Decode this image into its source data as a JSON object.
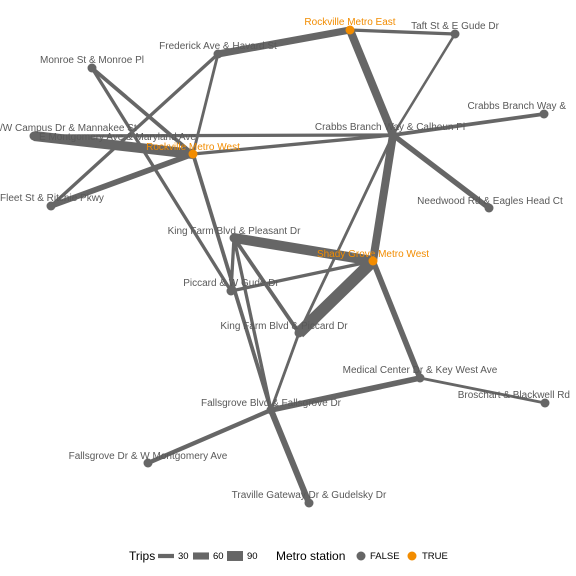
{
  "colors": {
    "edge": "#666666",
    "node_false": "#666666",
    "node_true": "#f28c00",
    "label": "#595959"
  },
  "chart_data": {
    "type": "network",
    "nodes": [
      {
        "id": "rockville_east",
        "label": "Rockville Metro East",
        "metro": true
      },
      {
        "id": "taft_gude",
        "label": "Taft St & E Gude Dr",
        "metro": false
      },
      {
        "id": "frederick_havard",
        "label": "Frederick Ave & Havard St",
        "metro": false
      },
      {
        "id": "monroe",
        "label": "Monroe St & Monroe Pl",
        "metro": false
      },
      {
        "id": "crabbs_way",
        "label": "Crabbs Branch Way &",
        "metro": false
      },
      {
        "id": "w_campus",
        "label": "/W Campus Dr & Mannakee St",
        "metro": false
      },
      {
        "id": "montgomery_maryland",
        "label": "E Montgomery Ave & Maryland Ave",
        "metro": false
      },
      {
        "id": "rockville_west",
        "label": "Rockville Metro West",
        "metro": true
      },
      {
        "id": "crabbs_calhoun",
        "label": "Crabbs Branch Way & Calhoun Pl",
        "metro": false
      },
      {
        "id": "ritchie",
        "label": "Fleet St & Ritchie Pkwy",
        "metro": false
      },
      {
        "id": "needwood",
        "label": "Needwood Rd & Eagles Head Ct",
        "metro": false
      },
      {
        "id": "kingfarm_pleasant",
        "label": "King Farm Blvd & Pleasant Dr",
        "metro": false
      },
      {
        "id": "shady_grove_west",
        "label": "Shady Grove Metro West",
        "metro": true
      },
      {
        "id": "piccard_gude",
        "label": "Piccard & W Gude Dr",
        "metro": false
      },
      {
        "id": "kingfarm_piccard",
        "label": "King Farm Blvd & Piccard Dr",
        "metro": false
      },
      {
        "id": "medical_center",
        "label": "Medical Center Dr & Key West Ave",
        "metro": false
      },
      {
        "id": "broschart",
        "label": "Broschart & Blackwell Rd",
        "metro": false
      },
      {
        "id": "fallsgrove",
        "label": "Fallsgrove Blvd & Fallsgrove Dr",
        "metro": false
      },
      {
        "id": "fallsgrove_w_montgomery",
        "label": "Fallsgrove Dr & W Montgomery Ave",
        "metro": false
      },
      {
        "id": "traville",
        "label": "Traville Gateway Dr & Gudelsky Dr",
        "metro": false
      }
    ],
    "edges": [
      {
        "source": "rockville_east",
        "target": "frederick_havard",
        "trips": 60
      },
      {
        "source": "rockville_east",
        "target": "taft_gude",
        "trips": 20
      },
      {
        "source": "rockville_east",
        "target": "crabbs_calhoun",
        "trips": 70
      },
      {
        "source": "taft_gude",
        "target": "crabbs_calhoun",
        "trips": 12
      },
      {
        "source": "frederick_havard",
        "target": "ritchie",
        "trips": 20
      },
      {
        "source": "frederick_havard",
        "target": "rockville_west",
        "trips": 15
      },
      {
        "source": "monroe",
        "target": "rockville_west",
        "trips": 25
      },
      {
        "source": "monroe",
        "target": "piccard_gude",
        "trips": 20
      },
      {
        "source": "w_campus",
        "target": "rockville_west",
        "trips": 90
      },
      {
        "source": "w_campus",
        "target": "crabbs_calhoun",
        "trips": 20
      },
      {
        "source": "ritchie",
        "target": "rockville_west",
        "trips": 45
      },
      {
        "source": "rockville_west",
        "target": "crabbs_calhoun",
        "trips": 20
      },
      {
        "source": "rockville_west",
        "target": "fallsgrove",
        "trips": 25
      },
      {
        "source": "crabbs_calhoun",
        "target": "crabbs_way",
        "trips": 25
      },
      {
        "source": "crabbs_calhoun",
        "target": "needwood",
        "trips": 40
      },
      {
        "source": "crabbs_calhoun",
        "target": "shady_grove_west",
        "trips": 70
      },
      {
        "source": "crabbs_calhoun",
        "target": "kingfarm_piccard",
        "trips": 15
      },
      {
        "source": "kingfarm_pleasant",
        "target": "shady_grove_west",
        "trips": 90
      },
      {
        "source": "kingfarm_pleasant",
        "target": "piccard_gude",
        "trips": 20
      },
      {
        "source": "kingfarm_pleasant",
        "target": "kingfarm_piccard",
        "trips": 25
      },
      {
        "source": "kingfarm_pleasant",
        "target": "fallsgrove",
        "trips": 20
      },
      {
        "source": "piccard_gude",
        "target": "shady_grove_west",
        "trips": 20
      },
      {
        "source": "kingfarm_piccard",
        "target": "shady_grove_west",
        "trips": 110
      },
      {
        "source": "kingfarm_piccard",
        "target": "fallsgrove",
        "trips": 15
      },
      {
        "source": "shady_grove_west",
        "target": "medical_center",
        "trips": 45
      },
      {
        "source": "medical_center",
        "target": "broschart",
        "trips": 15
      },
      {
        "source": "medical_center",
        "target": "fallsgrove",
        "trips": 45
      },
      {
        "source": "fallsgrove",
        "target": "fallsgrove_w_montgomery",
        "trips": 30
      },
      {
        "source": "fallsgrove",
        "target": "traville",
        "trips": 50
      }
    ]
  },
  "legend": {
    "trips_title": "Trips",
    "trips_items": [
      {
        "label": "30",
        "trips": 30
      },
      {
        "label": "60",
        "trips": 60
      },
      {
        "label": "90",
        "trips": 90
      }
    ],
    "metro_title": "Metro station",
    "metro_items": [
      {
        "label": "FALSE",
        "metro": false
      },
      {
        "label": "TRUE",
        "metro": true
      }
    ]
  }
}
